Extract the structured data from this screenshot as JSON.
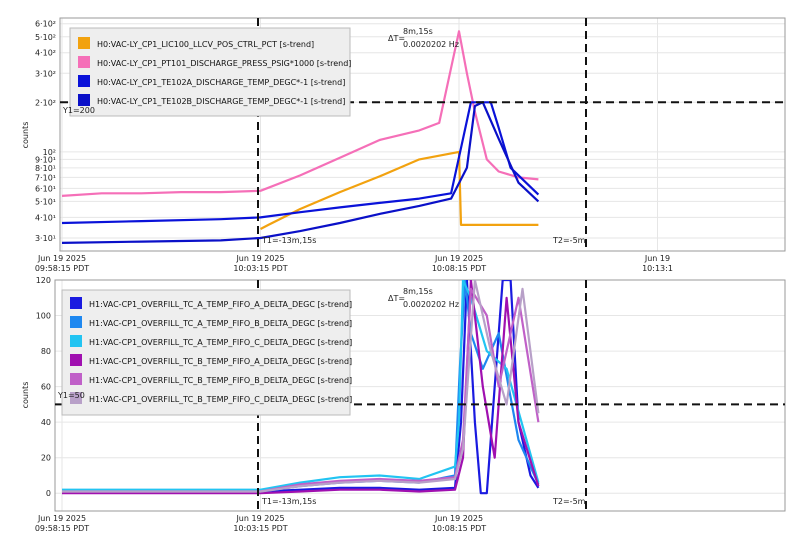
{
  "panels": [
    {
      "ylabel": "counts",
      "yscale": "log",
      "ylim": [
        25,
        650
      ],
      "y_ticks": [
        {
          "v": 30,
          "label": "3·10¹"
        },
        {
          "v": 40,
          "label": "4·10¹"
        },
        {
          "v": 50,
          "label": "5·10¹"
        },
        {
          "v": 60,
          "label": "6·10¹"
        },
        {
          "v": 70,
          "label": "7·10¹"
        },
        {
          "v": 80,
          "label": "8·10¹"
        },
        {
          "v": 90,
          "label": "9·10¹"
        },
        {
          "v": 100,
          "label": "10²"
        },
        {
          "v": 200,
          "label": "2·10²"
        },
        {
          "v": 300,
          "label": "3·10²"
        },
        {
          "v": 400,
          "label": "4·10²"
        },
        {
          "v": 500,
          "label": "5·10²"
        },
        {
          "v": 600,
          "label": "6·10²"
        }
      ],
      "x_ticks": [
        {
          "t": 0,
          "label1": "Jun 19 2025",
          "label2": "09:58:15 PDT"
        },
        {
          "t": 5,
          "label1": "Jun 19 2025",
          "label2": "10:03:15 PDT"
        },
        {
          "t": 10,
          "label1": "Jun 19 2025",
          "label2": "10:08:15 PDT"
        },
        {
          "t": 15,
          "label1": "Jun 19",
          "label2": "10:13:1"
        }
      ],
      "cursor_y": {
        "value": 200,
        "label": "Y1=200"
      },
      "legend": [
        {
          "label": "H0:VAC-LY_CP1_LIC100_LLCV_POS_CTRL_PCT [s-trend]",
          "color": "#f2a20f"
        },
        {
          "label": "H0:VAC-LY_CP1_PT101_DISCHARGE_PRESS_PSIG*1000 [s-trend]",
          "color": "#f56fb8"
        },
        {
          "label": "H0:VAC-LY_CP1_TE102A_DISCHARGE_TEMP_DEGC*-1 [s-trend]",
          "color": "#0a12d9"
        },
        {
          "label": "H0:VAC-LY_CP1_TE102B_DISCHARGE_TEMP_DEGC*-1 [s-trend]",
          "color": "#0a10c8"
        }
      ]
    },
    {
      "ylabel": "counts",
      "yscale": "linear",
      "ylim": [
        -10,
        120
      ],
      "y_ticks": [
        {
          "v": 0,
          "label": "0"
        },
        {
          "v": 20,
          "label": "20"
        },
        {
          "v": 40,
          "label": "40"
        },
        {
          "v": 60,
          "label": "60"
        },
        {
          "v": 80,
          "label": "80"
        },
        {
          "v": 100,
          "label": "100"
        },
        {
          "v": 120,
          "label": "120"
        }
      ],
      "x_ticks": [
        {
          "t": 0,
          "label1": "Jun 19 2025",
          "label2": "09:58:15 PDT"
        },
        {
          "t": 5,
          "label1": "Jun 19 2025",
          "label2": "10:03:15 PDT"
        },
        {
          "t": 10,
          "label1": "Jun 19 2025",
          "label2": "10:08:15 PDT"
        }
      ],
      "cursor_y": {
        "value": 50,
        "label": "Y1=50"
      },
      "legend": [
        {
          "label": "H1:VAC-CP1_OVERFILL_TC_A_TEMP_FIFO_A_DELTA_DEGC [s-trend]",
          "color": "#1a1ae0"
        },
        {
          "label": "H1:VAC-CP1_OVERFILL_TC_A_TEMP_FIFO_B_DELTA_DEGC [s-trend]",
          "color": "#1e88f0"
        },
        {
          "label": "H1:VAC-CP1_OVERFILL_TC_A_TEMP_FIFO_C_DELTA_DEGC [s-trend]",
          "color": "#22c4f2"
        },
        {
          "label": "H1:VAC-CP1_OVERFILL_TC_B_TEMP_FIFO_A_DELTA_DEGC [s-trend]",
          "color": "#a010b0"
        },
        {
          "label": "H1:VAC-CP1_OVERFILL_TC_B_TEMP_FIFO_B_DELTA_DEGC [s-trend]",
          "color": "#c060c8"
        },
        {
          "label": "H1:VAC-CP1_OVERFILL_TC_B_TEMP_FIFO_C_DELTA_DEGC [s-trend]",
          "color": "#b8a0c8"
        }
      ]
    }
  ],
  "cursors": {
    "t1_label": "T1=-13m,15s",
    "t2_label": "T2=-5m",
    "delta_label": "ΔT=",
    "delta_value": "8m,15s",
    "delta_freq": "0.0020202 Hz"
  },
  "chart_data": [
    {
      "type": "line",
      "xlabel": "",
      "ylabel": "counts",
      "yscale": "log",
      "ylim": [
        25,
        650
      ],
      "x_unit": "minutes after 09:58:15 PDT",
      "series": [
        {
          "name": "H0:VAC-LY_CP1_LIC100_LLCV_POS_CTRL_PCT [s-trend]",
          "x": [
            5.0,
            5.2,
            6.0,
            7.0,
            8.0,
            9.0,
            10.0,
            10.05,
            12.0
          ],
          "y": [
            34,
            36,
            45,
            57,
            71,
            90,
            100,
            36,
            36
          ]
        },
        {
          "name": "H0:VAC-LY_CP1_PT101_DISCHARGE_PRESS_PSIG*1000 [s-trend]",
          "x": [
            0,
            1,
            2,
            3,
            4,
            5,
            6,
            7,
            8,
            9,
            9.5,
            10.0,
            10.2,
            10.4,
            10.7,
            11.0,
            11.5,
            12.0
          ],
          "y": [
            54,
            56,
            56,
            57,
            57,
            58,
            72,
            92,
            118,
            135,
            150,
            540,
            300,
            175,
            90,
            76,
            70,
            68
          ]
        },
        {
          "name": "H0:VAC-LY_CP1_TE102A_DISCHARGE_TEMP_DEGC*-1 [s-trend]",
          "x": [
            0,
            2,
            4,
            5.0,
            6,
            7,
            8,
            9,
            9.8,
            10.1,
            10.3,
            10.8,
            11.0,
            11.3,
            12.0
          ],
          "y": [
            37,
            38,
            39,
            40,
            43,
            46,
            49,
            52,
            56,
            120,
            200,
            200,
            140,
            80,
            55
          ]
        },
        {
          "name": "H0:VAC-LY_CP1_TE102B_DISCHARGE_TEMP_DEGC*-1 [s-trend]",
          "x": [
            0,
            2,
            4,
            5.0,
            6,
            7,
            8,
            9,
            9.8,
            10.2,
            10.4,
            10.6,
            11.0,
            11.5,
            12.0
          ],
          "y": [
            28,
            28.5,
            29,
            30,
            33,
            37,
            42,
            47,
            52,
            80,
            190,
            200,
            120,
            65,
            50
          ]
        }
      ]
    },
    {
      "type": "line",
      "xlabel": "",
      "ylabel": "counts",
      "ylim": [
        -10,
        120
      ],
      "x_unit": "minutes after 09:58:15 PDT",
      "series": [
        {
          "name": "H1:VAC-CP1_OVERFILL_TC_A_TEMP_FIFO_A_DELTA_DEGC [s-trend]",
          "x": [
            0,
            5.0,
            6,
            7,
            8,
            9,
            9.9,
            10.05,
            10.2,
            10.4,
            10.55,
            10.7,
            10.9,
            11.1,
            11.3,
            11.5,
            11.8,
            12.0
          ],
          "y": [
            1,
            1,
            2,
            3,
            3,
            2,
            3,
            40,
            120,
            40,
            0,
            0,
            60,
            120,
            120,
            40,
            10,
            3
          ]
        },
        {
          "name": "H1:VAC-CP1_OVERFILL_TC_A_TEMP_FIFO_B_DELTA_DEGC [s-trend]",
          "x": [
            0,
            5.0,
            6,
            7,
            8,
            9,
            9.9,
            10.02,
            10.15,
            10.3,
            10.6,
            11.0,
            11.5,
            12.0
          ],
          "y": [
            1,
            1,
            4,
            6,
            7,
            6,
            10,
            70,
            120,
            90,
            70,
            90,
            30,
            5
          ]
        },
        {
          "name": "H1:VAC-CP1_OVERFILL_TC_A_TEMP_FIFO_C_DELTA_DEGC [s-trend]",
          "x": [
            0,
            5.0,
            6,
            7,
            8,
            8.5,
            9,
            9.9,
            10.0,
            10.1,
            10.3,
            10.7,
            11.2,
            11.7,
            12.0
          ],
          "y": [
            2,
            2,
            6,
            9,
            10,
            9,
            8,
            15,
            40,
            120,
            110,
            80,
            70,
            30,
            6
          ]
        },
        {
          "name": "H1:VAC-CP1_OVERFILL_TC_B_TEMP_FIFO_A_DELTA_DEGC [s-trend]",
          "x": [
            0,
            5.0,
            6,
            7,
            8,
            9,
            9.9,
            10.1,
            10.3,
            10.6,
            10.9,
            11.2,
            11.5,
            12.0
          ],
          "y": [
            0,
            0,
            1,
            2,
            2,
            1,
            2,
            20,
            120,
            60,
            20,
            110,
            40,
            4
          ]
        },
        {
          "name": "H1:VAC-CP1_OVERFILL_TC_B_TEMP_FIFO_B_DELTA_DEGC [s-trend]",
          "x": [
            0,
            5.0,
            6,
            7,
            8,
            9,
            9.9,
            10.1,
            10.3,
            10.7,
            11.0,
            11.5,
            12.0
          ],
          "y": [
            1,
            1,
            5,
            7,
            8,
            7,
            9,
            30,
            115,
            100,
            60,
            110,
            40
          ]
        },
        {
          "name": "H1:VAC-CP1_OVERFILL_TC_B_TEMP_FIFO_C_DELTA_DEGC [s-trend]",
          "x": [
            0,
            5.0,
            6,
            7,
            8,
            9,
            9.9,
            10.1,
            10.4,
            10.8,
            11.2,
            11.6,
            12.0
          ],
          "y": [
            1,
            1,
            4,
            6,
            7,
            6,
            8,
            25,
            120,
            80,
            50,
            115,
            45
          ]
        }
      ]
    }
  ]
}
